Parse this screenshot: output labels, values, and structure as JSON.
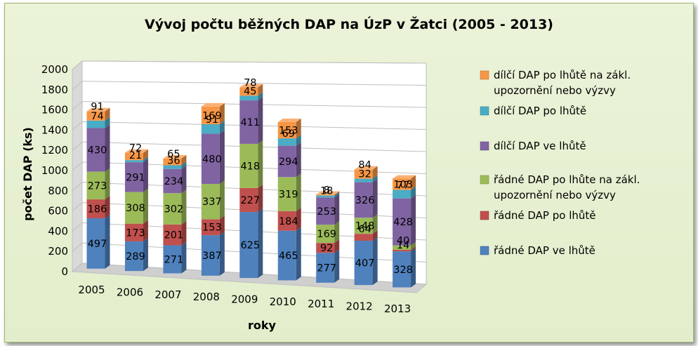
{
  "chart_data": {
    "type": "bar",
    "stacked": true,
    "three_d": true,
    "title": "Vývoj počtu běžných DAP na ÚzP v Žatci (2005 - 2013)",
    "xlabel": "roky",
    "ylabel": "počet DAP (ks)",
    "ylim": [
      0,
      2000
    ],
    "yticks": [
      "0",
      "200",
      "400",
      "600",
      "800",
      "1000",
      "1200",
      "1400",
      "1600",
      "1800",
      "2000"
    ],
    "grid": true,
    "legend_position": "right",
    "categories": [
      "2005",
      "2006",
      "2007",
      "2008",
      "2009",
      "2010",
      "2011",
      "2012",
      "2013"
    ],
    "series": [
      {
        "name": "řádné DAP ve lhůtě",
        "color": "#4f81bd",
        "values": [
          497,
          289,
          271,
          387,
          625,
          465,
          277,
          407,
          328
        ]
      },
      {
        "name": "řádné DAP po lhůtě",
        "color": "#c0504d",
        "values": [
          186,
          173,
          201,
          153,
          227,
          184,
          92,
          64,
          14
        ]
      },
      {
        "name": "řádné DAP po lhůte na zákl. upozornění nebo výzvy",
        "color": "#9bbb59",
        "values": [
          273,
          308,
          302,
          337,
          418,
          319,
          169,
          148,
          40
        ]
      },
      {
        "name": "dílčí DAP ve lhůtě",
        "color": "#8064a2",
        "values": [
          430,
          291,
          234,
          480,
          411,
          294,
          253,
          326,
          428
        ]
      },
      {
        "name": "dílčí DAP po lhůtě",
        "color": "#4bacc6",
        "values": [
          74,
          21,
          36,
          91,
          45,
          69,
          18,
          32,
          77
        ]
      },
      {
        "name": "dílčí DAP po lhůtě na zákl. upozornění nebo výzvy",
        "color": "#f79646",
        "values": [
          91,
          72,
          65,
          169,
          78,
          153,
          8,
          84,
          103
        ]
      }
    ]
  }
}
